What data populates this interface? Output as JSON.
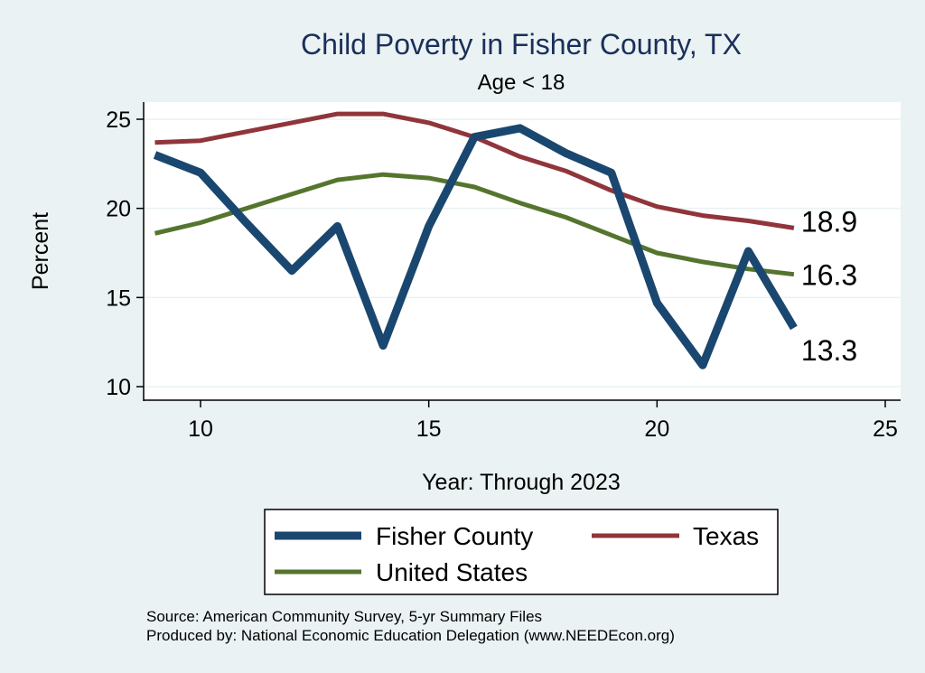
{
  "chart_data": {
    "type": "line",
    "title": "Child Poverty in Fisher County, TX",
    "subtitle": "Age < 18",
    "xlabel": "Year: Through 2023",
    "ylabel": "Percent",
    "xlim": [
      9,
      25
    ],
    "ylim": [
      10,
      25
    ],
    "xticks": [
      "10",
      "15",
      "20",
      "25"
    ],
    "yticks": [
      "10",
      "15",
      "20",
      "25"
    ],
    "grid": true,
    "legend_position": "bottom",
    "x": [
      9,
      10,
      11,
      12,
      13,
      14,
      15,
      16,
      17,
      18,
      19,
      20,
      21,
      22,
      23
    ],
    "series": [
      {
        "name": "Fisher County",
        "color": "#1a476f",
        "values": [
          23.0,
          22.0,
          19.2,
          16.5,
          19.0,
          12.3,
          19.0,
          24.0,
          24.5,
          23.1,
          22.0,
          14.7,
          11.2,
          17.6,
          13.3
        ],
        "end_label": "13.3"
      },
      {
        "name": "Texas",
        "color": "#90353b",
        "values": [
          23.7,
          23.8,
          24.3,
          24.8,
          25.3,
          25.3,
          24.8,
          24.0,
          22.9,
          22.1,
          21.0,
          20.1,
          19.6,
          19.3,
          18.9
        ],
        "end_label": "18.9"
      },
      {
        "name": "United States",
        "color": "#55752f",
        "values": [
          18.6,
          19.2,
          20.0,
          20.8,
          21.6,
          21.9,
          21.7,
          21.2,
          20.3,
          19.5,
          18.5,
          17.5,
          17.0,
          16.6,
          16.3
        ],
        "end_label": "16.3"
      }
    ],
    "notes": [
      "Source: American Community Survey, 5-yr Summary Files",
      "Produced by: National Economic Education Delegation (www.NEEDEcon.org)"
    ]
  }
}
